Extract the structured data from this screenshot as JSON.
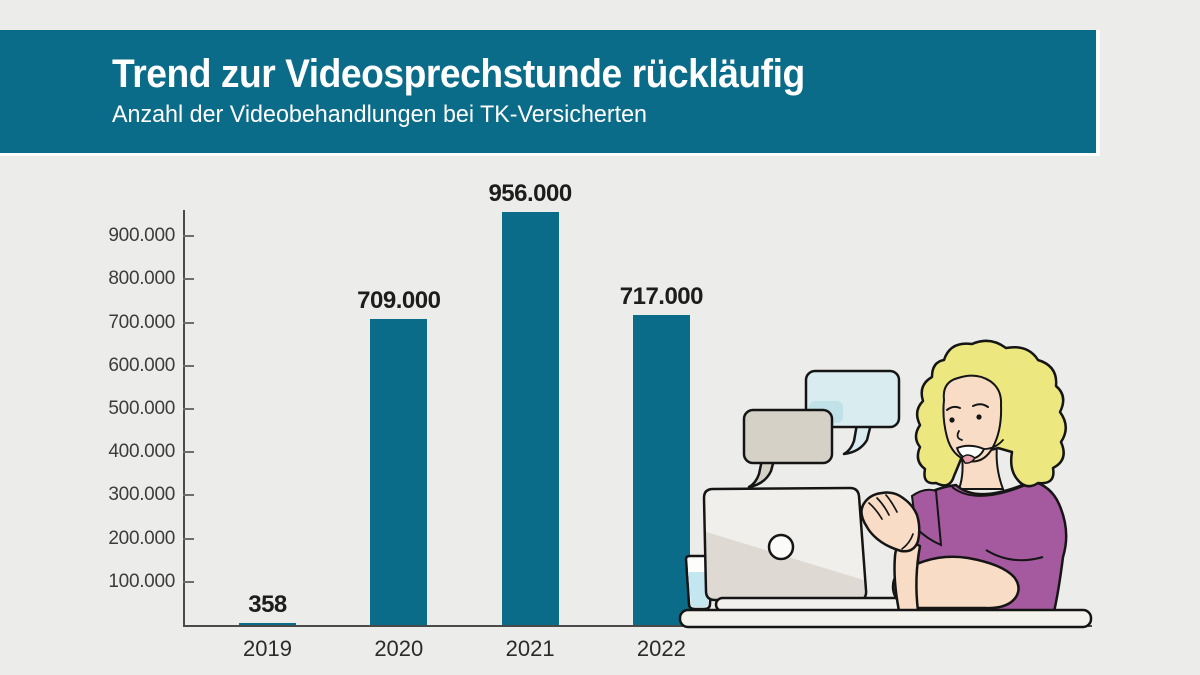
{
  "page": {
    "background_color": "#ECECEA"
  },
  "header": {
    "title": "Trend zur Videosprechstunde rückläufig",
    "subtitle": "Anzahl der Videobehandlungen bei TK-Versicherten",
    "background_color": "#0A6C89",
    "text_color": "#FFFFFF"
  },
  "chart_data": {
    "type": "bar",
    "title": "Trend zur Videosprechstunde rückläufig",
    "subtitle": "Anzahl der Videobehandlungen bei TK-Versicherten",
    "categories": [
      "2019",
      "2020",
      "2021",
      "2022"
    ],
    "values": [
      358,
      709000,
      956000,
      717000
    ],
    "value_labels": [
      "358",
      "709.000",
      "956.000",
      "717.000"
    ],
    "xlabel": "",
    "ylabel": "",
    "y_axis": {
      "tick_values": [
        900000,
        800000,
        700000,
        600000,
        500000,
        400000,
        300000,
        200000,
        100000
      ],
      "tick_labels": [
        "900.000",
        "800.000",
        "700.000",
        "600.000",
        "500.000",
        "400.000",
        "300.000",
        "200.000",
        "100.000"
      ],
      "range": [
        0,
        960000
      ]
    },
    "bar_color": "#0A6C89",
    "grid": false,
    "legend": null
  },
  "illustration": {
    "description": "Woman with curly blonde hair in purple shirt sitting at a desk with an open laptop, water glass and two speech bubbles (video consultation)",
    "colors": {
      "hair": "#ECE77E",
      "skin": "#F8DCC6",
      "shirt": "#A55A9F",
      "laptop": "#F0EFEB",
      "laptop_shade": "#DEDAD3",
      "desk": "#F4F2ED",
      "water": "#C3E6F0",
      "bubble_blue": "#D9EDF0",
      "bubble_blue_dark": "#C0E1E7",
      "bubble_gray": "#D5D1C6",
      "outline": "#151515"
    }
  }
}
